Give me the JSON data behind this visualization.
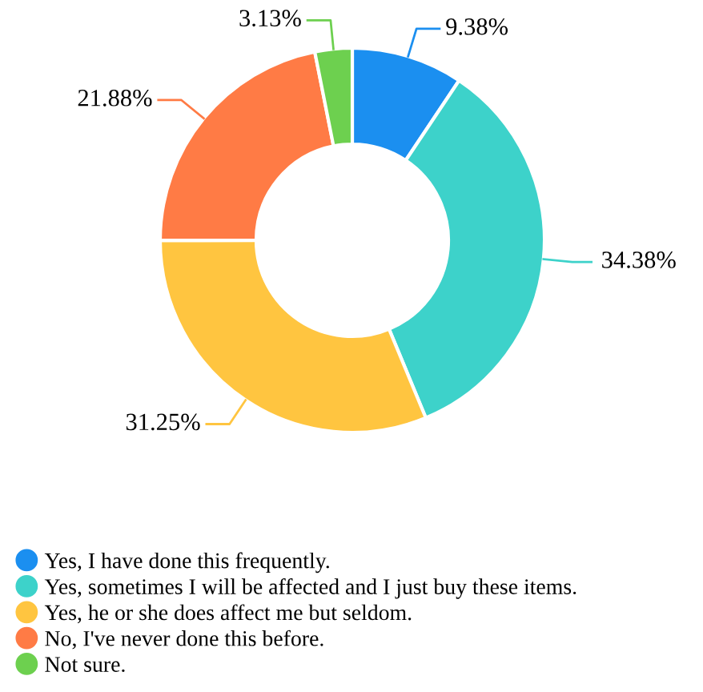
{
  "chart_data": {
    "type": "donut",
    "categories": [
      "Yes, I have done this frequently.",
      "Yes, sometimes I will be affected and I just buy these items.",
      "Yes, he or she does affect me but seldom.",
      "No, I've never done this before.",
      "Not sure."
    ],
    "values": [
      9.38,
      34.38,
      31.25,
      21.88,
      3.13
    ],
    "value_labels": [
      "9.38%",
      "34.38%",
      "31.25%",
      "21.88%",
      "3.13%"
    ],
    "colors": [
      "#1b8ff0",
      "#3dd2ca",
      "#ffc540",
      "#ff7b45",
      "#6dd04f"
    ],
    "legend": "bottom left"
  }
}
